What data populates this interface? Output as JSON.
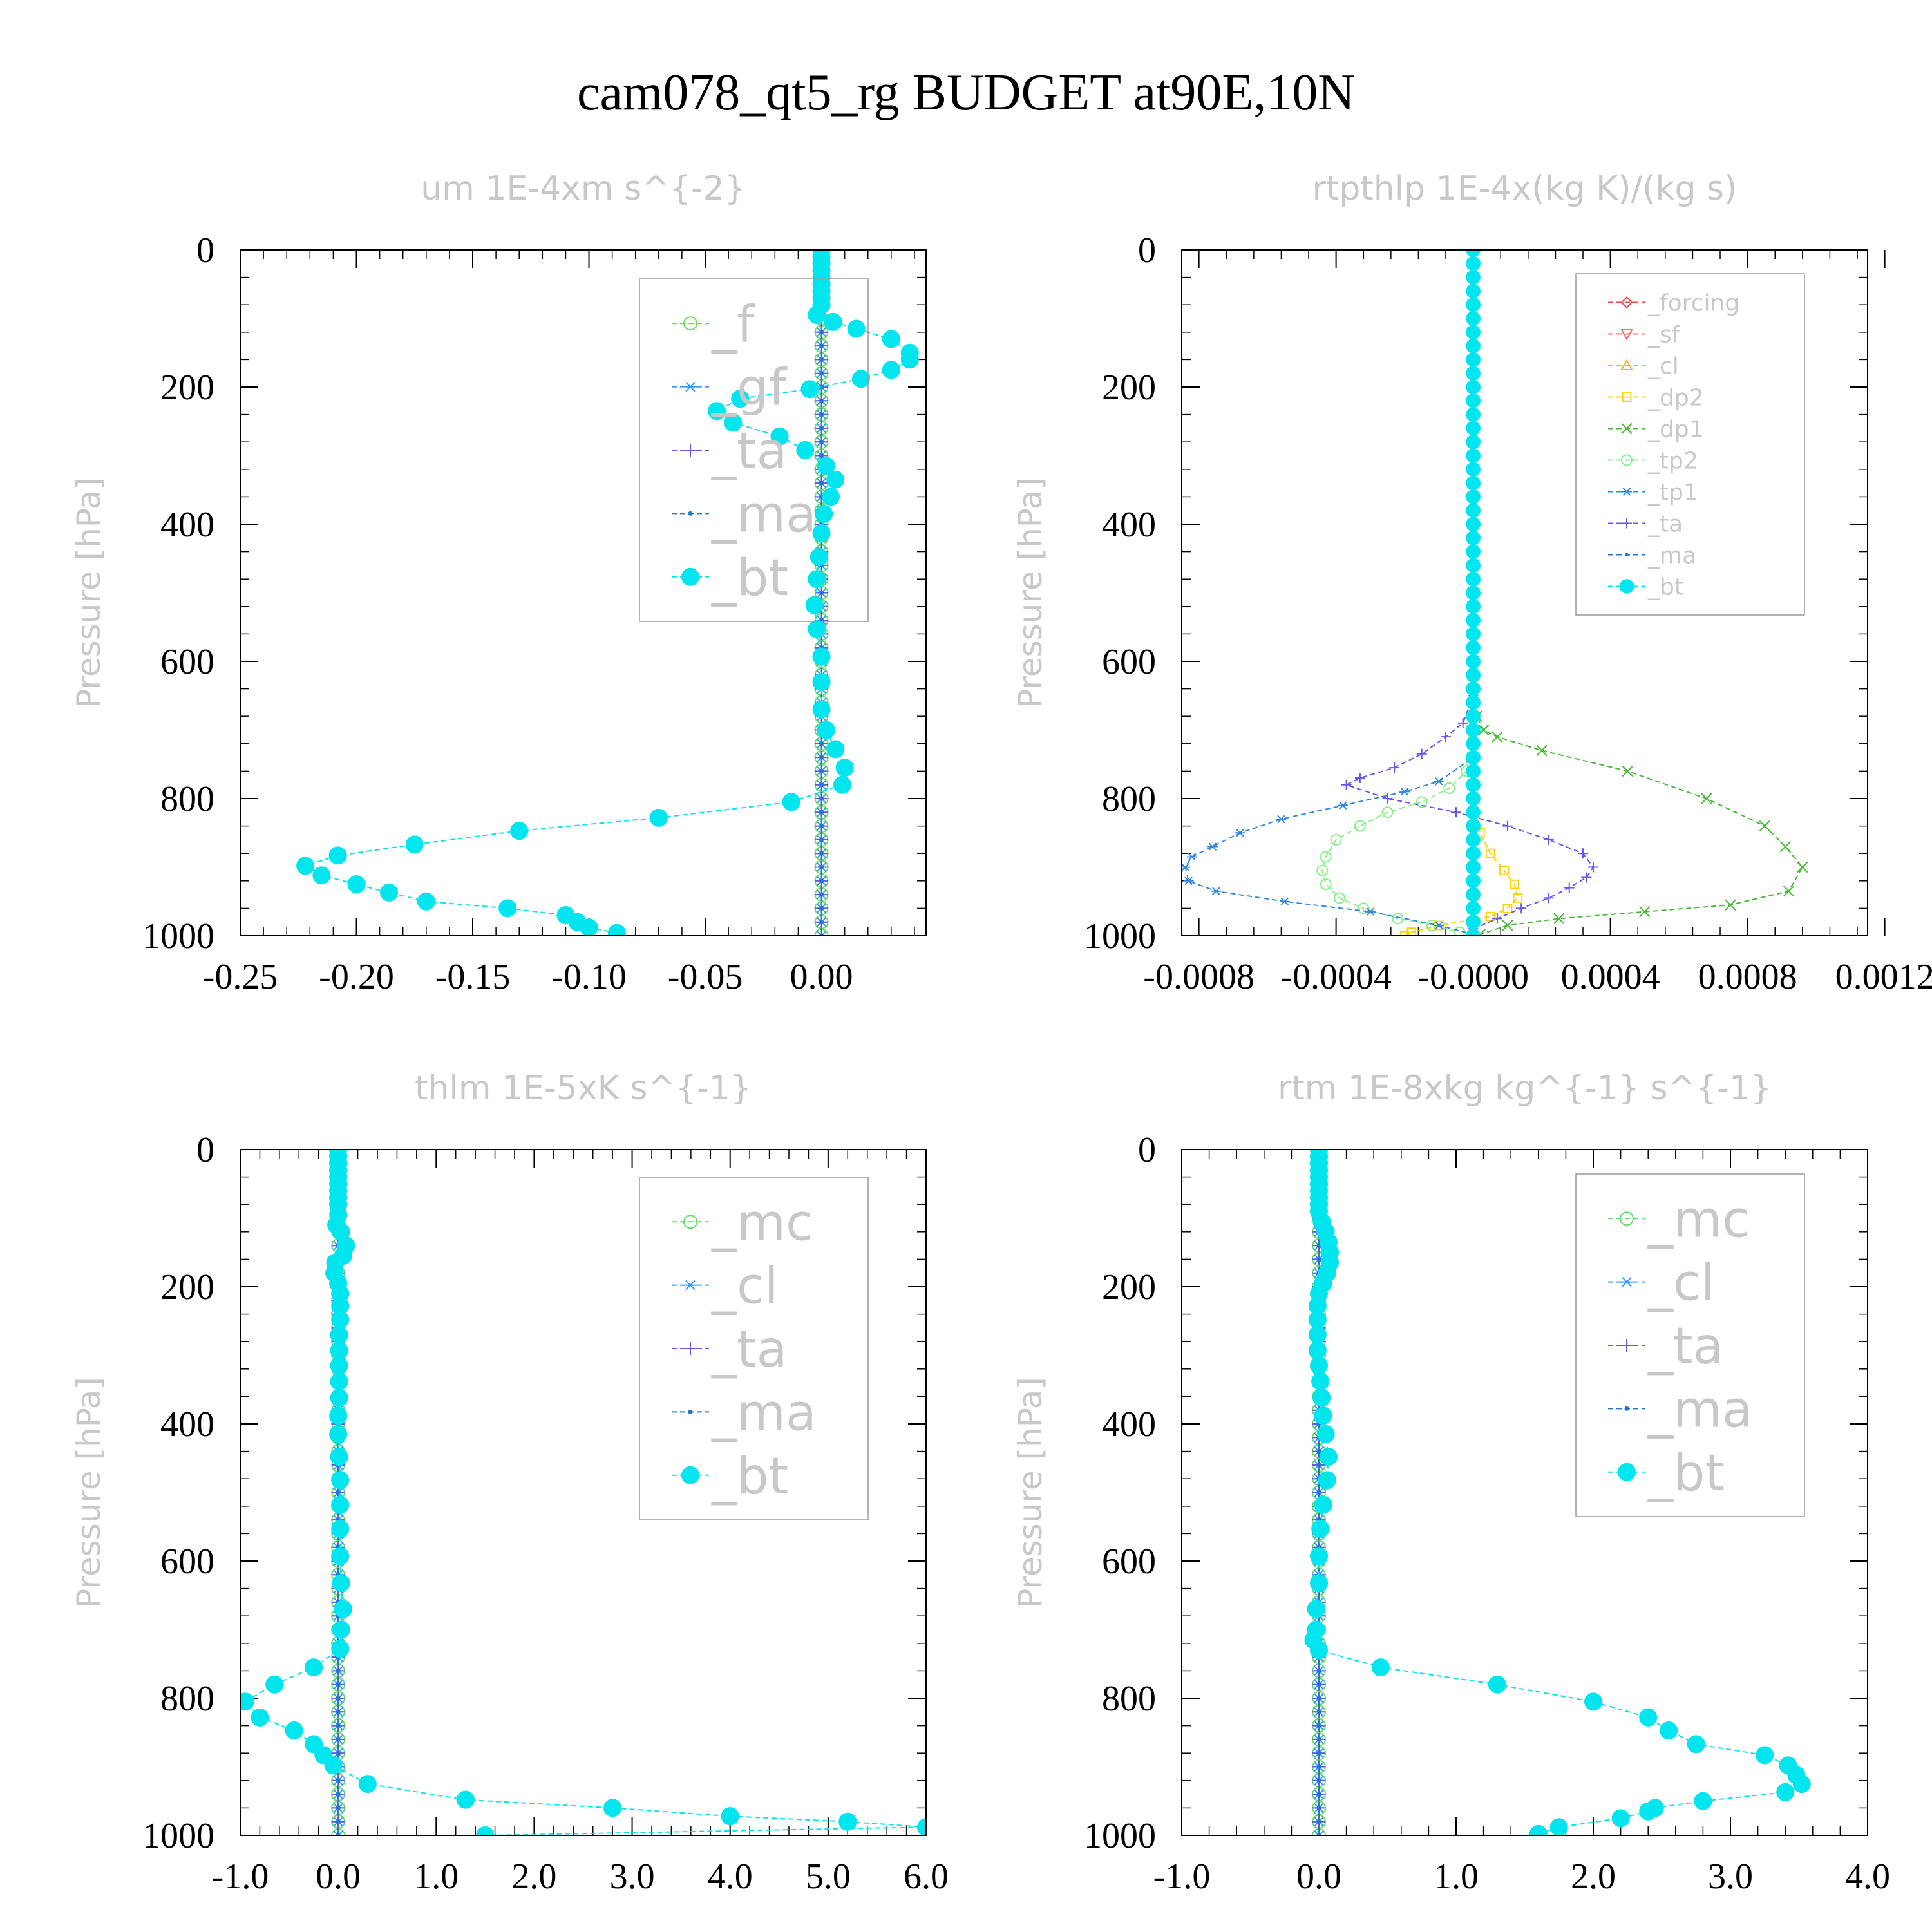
{
  "figure": {
    "title": "cam078_qt5_rg  BUDGET at90E,10N"
  },
  "chart_data": [
    {
      "type": "line",
      "title": "um  1E-4xm s^{-2}",
      "ylabel": "Pressure [hPa]",
      "xlim": [
        -0.25,
        0.045
      ],
      "ylim": [
        1000,
        0
      ],
      "xticks": [
        "-0.25",
        "-0.20",
        "-0.15",
        "-0.10",
        "-0.05",
        "0.00"
      ],
      "xtick_values": [
        -0.25,
        -0.2,
        -0.15,
        -0.1,
        -0.05,
        0.0
      ],
      "yticks": [
        "0",
        "200",
        "400",
        "600",
        "800",
        "1000"
      ],
      "ytick_values": [
        0,
        200,
        400,
        600,
        800,
        1000
      ],
      "legend": "top-right",
      "series": [
        {
          "name": "_f",
          "color": "#66dd66",
          "marker": "circle",
          "flat": 0.0
        },
        {
          "name": "_gf",
          "color": "#3399ff",
          "marker": "star",
          "flat": 0.0
        },
        {
          "name": "_ta",
          "color": "#6655ee",
          "marker": "plus",
          "flat": 0.0
        },
        {
          "name": "_ma",
          "color": "#2277cc",
          "marker": "dot",
          "flat": 0.0
        },
        {
          "name": "_bt",
          "color": "#00e5ee",
          "marker": "bigdot",
          "x": [
            0.0,
            0.0,
            0.0,
            0.0,
            0.0,
            0.0,
            0.0,
            0.0,
            0.0,
            -0.002,
            0.005,
            0.015,
            0.03,
            0.038,
            0.038,
            0.03,
            0.017,
            -0.005,
            -0.035,
            -0.045,
            -0.038,
            -0.018,
            -0.007,
            0.002,
            0.006,
            0.004,
            0.001,
            0.0,
            -0.001,
            -0.002,
            -0.003,
            -0.002,
            0.0,
            0.0,
            0.0,
            0.002,
            0.006,
            0.01,
            0.009,
            -0.013,
            -0.07,
            -0.13,
            -0.175,
            -0.208,
            -0.222,
            -0.215,
            -0.2,
            -0.186,
            -0.17,
            -0.135,
            -0.11,
            -0.105,
            -0.1,
            -0.088
          ],
          "y": [
            0,
            10,
            20,
            30,
            40,
            50,
            60,
            70,
            80,
            95,
            105,
            115,
            130,
            150,
            160,
            175,
            188,
            203,
            217,
            235,
            252,
            272,
            292,
            315,
            335,
            360,
            385,
            413,
            448,
            480,
            518,
            553,
            593,
            630,
            670,
            700,
            728,
            755,
            780,
            805,
            828,
            847,
            867,
            883,
            898,
            912,
            925,
            937,
            950,
            960,
            970,
            980,
            988,
            996
          ]
        }
      ]
    },
    {
      "type": "line",
      "title": "rtpthlp  1E-4x(kg K)/(kg s)",
      "ylabel": "Pressure [hPa]",
      "xlim": [
        -0.00085,
        0.00115
      ],
      "ylim": [
        1000,
        0
      ],
      "xticks": [
        "-0.0008",
        "-0.0004",
        "-0.0000",
        "0.0004",
        "0.0008",
        "0.0012"
      ],
      "xtick_values": [
        -0.0008,
        -0.0004,
        0.0,
        0.0004,
        0.0008,
        0.0012
      ],
      "yticks": [
        "0",
        "200",
        "400",
        "600",
        "800",
        "1000"
      ],
      "ytick_values": [
        0,
        200,
        400,
        600,
        800,
        1000
      ],
      "legend": "top-right",
      "series": [
        {
          "name": "_forcing",
          "color": "#ee4444",
          "marker": "diamond",
          "flat": 0.0
        },
        {
          "name": "_sf",
          "color": "#ff6666",
          "marker": "triangle-down",
          "flat": 0.0
        },
        {
          "name": "_cl",
          "color": "#ffaa33",
          "marker": "triangle",
          "flat": 0.0
        },
        {
          "name": "_dp2",
          "color": "#ffd000",
          "marker": "square",
          "x": [
            0.0,
            0.0,
            0.0,
            0.0,
            2e-05,
            5e-05,
            9e-05,
            0.00012,
            0.00013,
            0.0001,
            5e-05,
            -0.0001,
            -0.00018,
            -0.0002
          ],
          "y": [
            0,
            300,
            600,
            800,
            850,
            880,
            905,
            925,
            945,
            960,
            972,
            985,
            995,
            1000
          ]
        },
        {
          "name": "_dp1",
          "color": "#44bb33",
          "marker": "x",
          "x": [
            0.0,
            0.0,
            0.0,
            0.0,
            0.0,
            1e-05,
            3e-05,
            7e-05,
            0.0002,
            0.00045,
            0.00068,
            0.00085,
            0.00091,
            0.00096,
            0.00092,
            0.00075,
            0.0005,
            0.00025,
            0.0001,
            2e-05
          ],
          "y": [
            0,
            300,
            500,
            600,
            650,
            680,
            700,
            710,
            730,
            760,
            800,
            840,
            870,
            900,
            935,
            955,
            965,
            975,
            985,
            998
          ]
        },
        {
          "name": "_tp2",
          "color": "#88ee88",
          "marker": "circle",
          "x": [
            0.0,
            0.0,
            -2e-05,
            -7e-05,
            -0.00015,
            -0.00025,
            -0.00033,
            -0.0004,
            -0.00043,
            -0.00044,
            -0.00043,
            -0.00039,
            -0.00032,
            -0.00022,
            -0.00012,
            -4e-05
          ],
          "y": [
            0,
            600,
            760,
            785,
            805,
            820,
            840,
            860,
            885,
            905,
            925,
            945,
            960,
            975,
            985,
            995
          ]
        },
        {
          "name": "_tp1",
          "color": "#3388dd",
          "marker": "star",
          "x": [
            0.0,
            0.0,
            -0.0001,
            -0.0002,
            -0.00038,
            -0.00056,
            -0.00068,
            -0.00076,
            -0.00082,
            -0.00084,
            -0.00083,
            -0.00075,
            -0.00055,
            -0.0003,
            -0.0001,
            0.0
          ],
          "y": [
            0,
            740,
            775,
            790,
            810,
            830,
            850,
            870,
            885,
            900,
            920,
            935,
            950,
            965,
            985,
            998
          ]
        },
        {
          "name": "_ta",
          "color": "#6655ee",
          "marker": "plus",
          "x": [
            0.0,
            0.0,
            -3e-05,
            -8e-05,
            -0.00015,
            -0.00023,
            -0.00033,
            -0.00037,
            -0.00025,
            -5e-05,
            0.0001,
            0.00022,
            0.00032,
            0.00035,
            0.00033,
            0.00028,
            0.00022,
            0.00014,
            7e-05,
            0.0
          ],
          "y": [
            0,
            650,
            690,
            710,
            735,
            755,
            770,
            780,
            800,
            820,
            840,
            860,
            880,
            900,
            915,
            930,
            945,
            960,
            975,
            990
          ]
        },
        {
          "name": "_ma",
          "color": "#2277cc",
          "marker": "dot",
          "flat": 0.0
        },
        {
          "name": "_bt",
          "color": "#00e5ee",
          "marker": "bigdot",
          "flat": 0.0
        }
      ]
    },
    {
      "type": "line",
      "title": "thlm  1E-5xK s^{-1}",
      "ylabel": "Pressure [hPa]",
      "xlim": [
        -1.0,
        6.0
      ],
      "ylim": [
        1000,
        0
      ],
      "xticks": [
        "-1.0",
        "0.0",
        "1.0",
        "2.0",
        "3.0",
        "4.0",
        "5.0",
        "6.0"
      ],
      "xtick_values": [
        -1.0,
        0.0,
        1.0,
        2.0,
        3.0,
        4.0,
        5.0,
        6.0
      ],
      "yticks": [
        "0",
        "200",
        "400",
        "600",
        "800",
        "1000"
      ],
      "ytick_values": [
        0,
        200,
        400,
        600,
        800,
        1000
      ],
      "legend": "top-right",
      "series": [
        {
          "name": "_mc",
          "color": "#66dd66",
          "marker": "circle",
          "flat": 0.0
        },
        {
          "name": "_cl",
          "color": "#3399ff",
          "marker": "star",
          "flat": 0.0
        },
        {
          "name": "_ta",
          "color": "#6655ee",
          "marker": "plus",
          "flat": 0.0
        },
        {
          "name": "_ma",
          "color": "#2277cc",
          "marker": "dot",
          "flat": 0.0
        },
        {
          "name": "_bt",
          "color": "#00e5ee",
          "marker": "bigdot",
          "x": [
            0.0,
            0.0,
            0.0,
            0.0,
            0.0,
            0.0,
            0.0,
            0.0,
            0.0,
            0.0,
            -0.02,
            0.03,
            0.08,
            0.05,
            -0.03,
            -0.04,
            0.0,
            0.02,
            0.02,
            0.02,
            0.01,
            0.01,
            0.01,
            0.01,
            0.01,
            0.0,
            0.0,
            0.01,
            0.02,
            0.02,
            0.02,
            0.02,
            0.03,
            0.05,
            0.03,
            0.02,
            -0.25,
            -0.65,
            -0.95,
            -0.8,
            -0.45,
            -0.25,
            -0.15,
            -0.05,
            0.3,
            1.3,
            2.8,
            4.0,
            5.2,
            6.0,
            1.5
          ],
          "y": [
            0,
            10,
            20,
            30,
            40,
            50,
            60,
            70,
            80,
            95,
            110,
            120,
            140,
            155,
            165,
            180,
            195,
            210,
            228,
            248,
            270,
            293,
            315,
            338,
            362,
            388,
            415,
            448,
            482,
            518,
            553,
            593,
            632,
            670,
            700,
            728,
            755,
            780,
            805,
            828,
            847,
            867,
            883,
            898,
            925,
            948,
            960,
            972,
            980,
            988,
            1000
          ]
        }
      ]
    },
    {
      "type": "line",
      "title": "rtm  1E-8xkg kg^{-1} s^{-1}",
      "ylabel": "Pressure [hPa]",
      "xlim": [
        -1.0,
        4.0
      ],
      "ylim": [
        1000,
        0
      ],
      "xticks": [
        "-1.0",
        "0.0",
        "1.0",
        "2.0",
        "3.0",
        "4.0"
      ],
      "xtick_values": [
        -1.0,
        0.0,
        1.0,
        2.0,
        3.0,
        4.0
      ],
      "yticks": [
        "0",
        "200",
        "400",
        "600",
        "800",
        "1000"
      ],
      "ytick_values": [
        0,
        200,
        400,
        600,
        800,
        1000
      ],
      "legend": "top-right",
      "series": [
        {
          "name": "_mc",
          "color": "#66dd66",
          "marker": "circle",
          "flat": 0.0
        },
        {
          "name": "_cl",
          "color": "#3399ff",
          "marker": "star",
          "flat": 0.0
        },
        {
          "name": "_ta",
          "color": "#6655ee",
          "marker": "plus",
          "flat": 0.0
        },
        {
          "name": "_ma",
          "color": "#2277cc",
          "marker": "dot",
          "flat": 0.0
        },
        {
          "name": "_bt",
          "color": "#00e5ee",
          "marker": "bigdot",
          "x": [
            0.0,
            0.0,
            0.0,
            0.0,
            0.0,
            0.0,
            0.0,
            0.0,
            0.0,
            0.0,
            0.02,
            0.05,
            0.07,
            0.08,
            0.08,
            0.06,
            0.03,
            0.0,
            -0.01,
            -0.01,
            -0.01,
            -0.01,
            0.0,
            0.01,
            0.02,
            0.03,
            0.05,
            0.07,
            0.06,
            0.03,
            0.01,
            0.0,
            0.0,
            -0.02,
            -0.02,
            -0.04,
            0.0,
            0.45,
            1.3,
            2.0,
            2.4,
            2.55,
            2.75,
            3.25,
            3.42,
            3.48,
            3.52,
            3.4,
            2.8,
            2.45,
            2.4,
            2.2,
            1.75,
            1.6
          ],
          "y": [
            0,
            10,
            20,
            30,
            40,
            50,
            60,
            70,
            80,
            90,
            105,
            120,
            135,
            150,
            165,
            180,
            195,
            210,
            228,
            248,
            270,
            293,
            315,
            338,
            362,
            388,
            415,
            448,
            482,
            518,
            553,
            593,
            632,
            670,
            700,
            715,
            730,
            755,
            780,
            805,
            828,
            847,
            867,
            883,
            898,
            912,
            925,
            937,
            950,
            960,
            965,
            975,
            988,
            998
          ]
        }
      ]
    }
  ]
}
